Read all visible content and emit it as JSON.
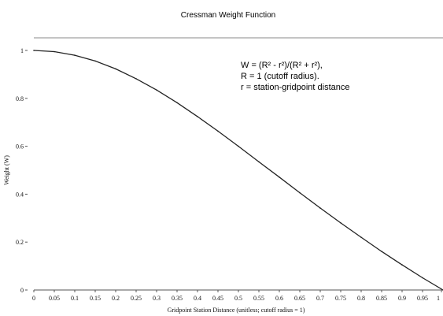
{
  "chart_data": {
    "type": "line",
    "title": "Cressman Weight Function",
    "xlabel": "Gridpoint Station Distance (unitless; cutoff radius = 1)",
    "ylabel": "Weight (W)",
    "xlim": [
      0,
      1
    ],
    "ylim": [
      0,
      1
    ],
    "x_ticks": [
      "0",
      "0.05",
      "0.1",
      "0.15",
      "0.2",
      "0.25",
      "0.3",
      "0.35",
      "0.4",
      "0.45",
      "0.5",
      "0.55",
      "0.6",
      "0.65",
      "0.7",
      "0.75",
      "0.8",
      "0.85",
      "0.9",
      "0.95",
      "1"
    ],
    "y_ticks": [
      "0",
      "0.2",
      "0.4",
      "0.6",
      "0.8",
      "1"
    ],
    "grid": false,
    "annotations": [
      "W = (R² - r²)/(R² + r²),",
      "R = 1 (cutoff radius).",
      "r = station-gridpoint distance"
    ],
    "series": [
      {
        "x": [
          0,
          0.05,
          0.1,
          0.15,
          0.2,
          0.25,
          0.3,
          0.35,
          0.4,
          0.45,
          0.5,
          0.55,
          0.6,
          0.65,
          0.7,
          0.75,
          0.8,
          0.85,
          0.9,
          0.95,
          1
        ],
        "y": [
          1,
          0.995,
          0.98,
          0.956,
          0.923,
          0.882,
          0.835,
          0.782,
          0.724,
          0.663,
          0.6,
          0.535,
          0.471,
          0.406,
          0.342,
          0.28,
          0.22,
          0.161,
          0.105,
          0.051,
          0
        ]
      }
    ]
  }
}
